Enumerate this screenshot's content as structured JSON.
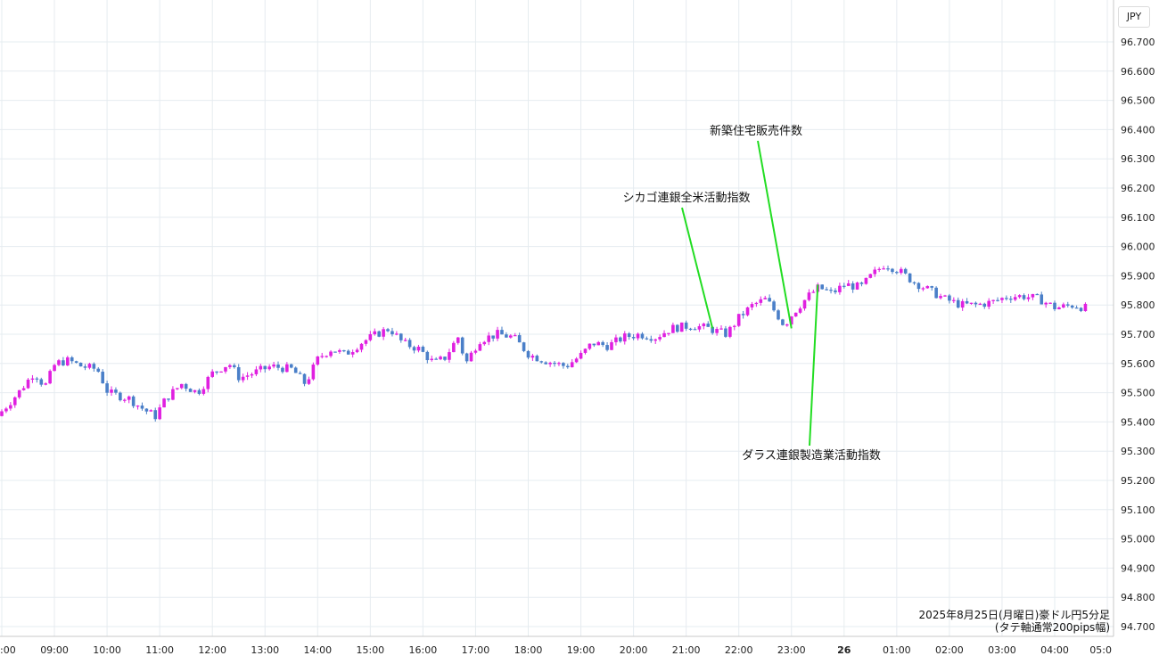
{
  "currency_badge": "JPY",
  "caption": {
    "line1": "2025年8月25日(月曜日)豪ドル円5分足",
    "line2": "(タテ軸通常200pips幅)"
  },
  "colors": {
    "up": "#e020e0",
    "down": "#4a7fc8",
    "annotation": "#22dd22",
    "grid": "#e6ecf0"
  },
  "chart_data": {
    "type": "candlestick",
    "instrument": "豪ドル円",
    "timeframe": "5分足",
    "ylim": [
      94.7,
      96.7
    ],
    "y_ticks": [
      "96.700",
      "96.600",
      "96.500",
      "96.400",
      "96.300",
      "96.200",
      "96.100",
      "96.000",
      "95.900",
      "95.800",
      "95.700",
      "95.600",
      "95.500",
      "95.400",
      "95.300",
      "95.200",
      "95.100",
      "95.000",
      "94.900",
      "94.800",
      "94.700"
    ],
    "x_ticks": [
      ":00",
      "09:00",
      "10:00",
      "11:00",
      "12:00",
      "13:00",
      "14:00",
      "15:00",
      "16:00",
      "17:00",
      "18:00",
      "19:00",
      "20:00",
      "21:00",
      "22:00",
      "23:00",
      "26",
      "01:00",
      "02:00",
      "03:00",
      "04:00",
      "05:0"
    ],
    "path": [
      [
        8.0,
        95.42
      ],
      [
        8.4,
        95.5
      ],
      [
        8.7,
        95.57
      ],
      [
        8.9,
        95.52
      ],
      [
        9.1,
        95.6
      ],
      [
        9.35,
        95.61
      ],
      [
        9.6,
        95.59
      ],
      [
        9.9,
        95.58
      ],
      [
        10.1,
        95.5
      ],
      [
        10.5,
        95.48
      ],
      [
        10.8,
        95.44
      ],
      [
        11.0,
        95.42
      ],
      [
        11.2,
        95.48
      ],
      [
        11.5,
        95.53
      ],
      [
        11.8,
        95.5
      ],
      [
        12.1,
        95.57
      ],
      [
        12.4,
        95.6
      ],
      [
        12.6,
        95.55
      ],
      [
        12.9,
        95.57
      ],
      [
        13.2,
        95.59
      ],
      [
        13.6,
        95.58
      ],
      [
        13.85,
        95.53
      ],
      [
        14.1,
        95.62
      ],
      [
        14.35,
        95.65
      ],
      [
        14.6,
        95.63
      ],
      [
        14.9,
        95.67
      ],
      [
        15.2,
        95.7
      ],
      [
        15.45,
        95.72
      ],
      [
        15.7,
        95.67
      ],
      [
        16.0,
        95.65
      ],
      [
        16.3,
        95.6
      ],
      [
        16.5,
        95.62
      ],
      [
        16.75,
        95.69
      ],
      [
        16.9,
        95.6
      ],
      [
        17.15,
        95.68
      ],
      [
        17.5,
        95.7
      ],
      [
        17.8,
        95.69
      ],
      [
        18.1,
        95.63
      ],
      [
        18.4,
        95.61
      ],
      [
        18.8,
        95.59
      ],
      [
        19.1,
        95.63
      ],
      [
        19.3,
        95.67
      ],
      [
        19.6,
        95.66
      ],
      [
        19.9,
        95.69
      ],
      [
        20.2,
        95.7
      ],
      [
        20.5,
        95.69
      ],
      [
        20.8,
        95.72
      ],
      [
        21.2,
        95.73
      ],
      [
        21.5,
        95.72
      ],
      [
        21.85,
        95.7
      ],
      [
        22.1,
        95.76
      ],
      [
        22.35,
        95.8
      ],
      [
        22.6,
        95.82
      ],
      [
        22.8,
        95.77
      ],
      [
        22.95,
        95.73
      ],
      [
        23.1,
        95.77
      ],
      [
        23.4,
        95.83
      ],
      [
        23.6,
        95.86
      ],
      [
        23.85,
        95.84
      ],
      [
        24.1,
        95.87
      ],
      [
        24.4,
        95.86
      ],
      [
        24.6,
        95.9
      ],
      [
        24.85,
        95.94
      ],
      [
        25.1,
        95.92
      ],
      [
        25.4,
        95.88
      ],
      [
        25.7,
        95.85
      ],
      [
        26.0,
        95.82
      ],
      [
        26.3,
        95.8
      ],
      [
        26.6,
        95.8
      ],
      [
        26.9,
        95.81
      ],
      [
        27.2,
        95.83
      ],
      [
        27.5,
        95.83
      ],
      [
        27.8,
        95.82
      ],
      [
        28.1,
        95.79
      ],
      [
        28.45,
        95.8
      ],
      [
        28.65,
        95.79
      ]
    ],
    "annotations": [
      {
        "label": "新築住宅販売件数",
        "time": 23.0,
        "price": 95.72
      },
      {
        "label": "シカゴ連銀全米活動指数",
        "time": 21.5,
        "price": 95.72
      },
      {
        "label": "ダラス連銀製造業活動指数",
        "time": 23.5,
        "price": 95.87
      }
    ]
  }
}
